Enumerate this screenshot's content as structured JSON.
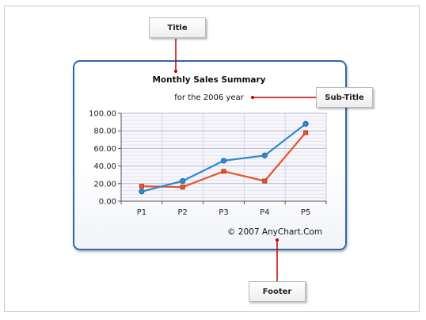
{
  "callouts": {
    "title": "Title",
    "subtitle": "Sub-Title",
    "footer": "Footer"
  },
  "chart_data": {
    "type": "line",
    "title": "Monthly Sales Summary",
    "subtitle": "for the 2006 year",
    "footer": "© 2007 AnyChart.Com",
    "categories": [
      "P1",
      "P2",
      "P3",
      "P4",
      "P5"
    ],
    "series": [
      {
        "color": "#2b8ad4",
        "marker": "circle",
        "values": [
          11,
          23,
          46,
          52,
          88
        ]
      },
      {
        "color": "#e8542b",
        "marker": "square",
        "values": [
          17,
          16,
          34,
          23,
          78
        ]
      }
    ],
    "ylim": [
      0,
      100
    ],
    "yticks": [
      "0.00",
      "20.00",
      "40.00",
      "60.00",
      "80.00",
      "100.00"
    ],
    "grid": true,
    "legend": "none"
  },
  "colors": {
    "frame_border": "#2e6aa8",
    "leader_line": "#c00000"
  }
}
